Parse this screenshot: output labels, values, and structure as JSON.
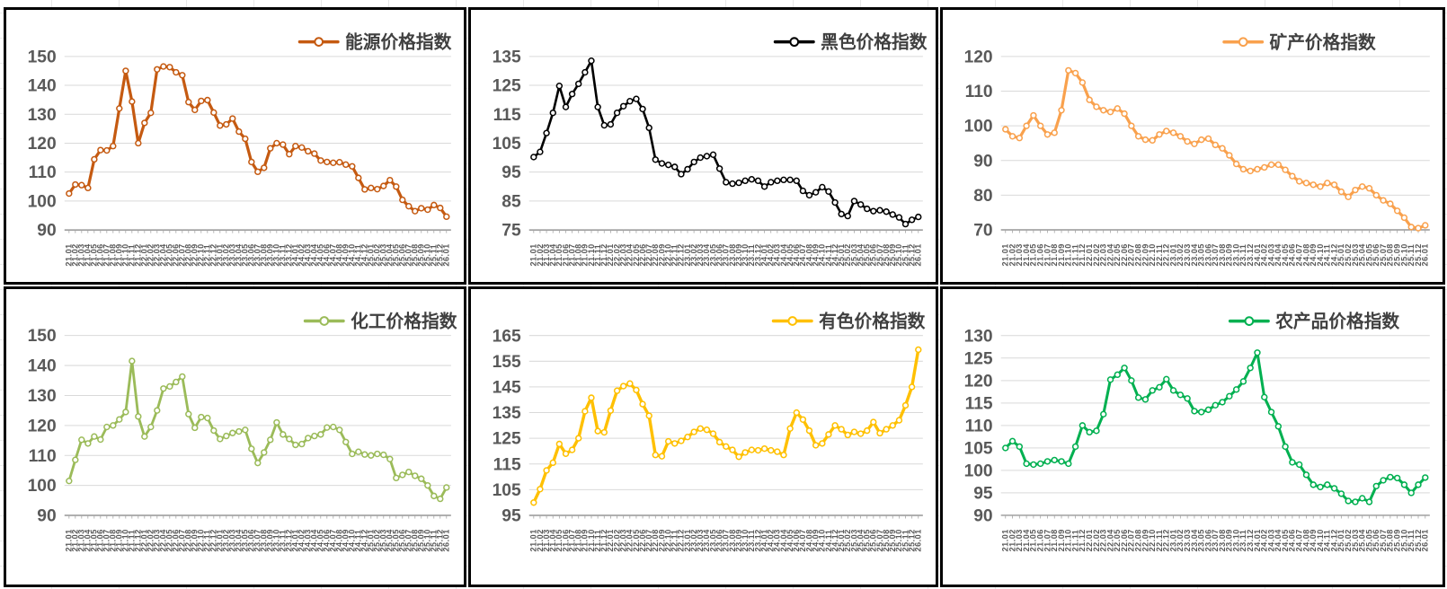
{
  "page": {
    "background": "#FFFFFF"
  },
  "style": {
    "grid_color": "#D9D9D9",
    "axis_color": "#808080",
    "tick_mark_color": "#A6A6A6",
    "y_tick_label_color": "#595959",
    "x_tick_label_color": "#595959",
    "legend_text_color": "#404040",
    "marker_fill": "#FFFFFF",
    "panel_border_color": "#000000"
  },
  "x_categories": [
    "21.01",
    "21.02",
    "21.03",
    "21.04",
    "21.05",
    "21.06",
    "21.07",
    "21.08",
    "21.09",
    "21.10",
    "21.11",
    "21.12",
    "22.01",
    "22.02",
    "22.03",
    "22.04",
    "22.05",
    "22.06",
    "22.07",
    "22.08",
    "22.09",
    "22.10",
    "22.11",
    "22.12",
    "23.01",
    "23.02",
    "23.03",
    "23.04",
    "23.05",
    "23.06",
    "23.07",
    "23.08",
    "23.09",
    "23.10",
    "23.11",
    "23.12",
    "24.01",
    "24.02",
    "24.03",
    "24.04",
    "24.05",
    "24.06",
    "24.07",
    "24.08",
    "24.09",
    "24.10",
    "24.11",
    "24.12",
    "25.01",
    "25.02",
    "25.03",
    "25.04",
    "25.05",
    "25.06",
    "25.07",
    "25.08",
    "25.09",
    "25.10",
    "25.11",
    "25.12",
    "26.01"
  ],
  "chart_data": [
    {
      "type": "line",
      "key": "energy",
      "title": "能源价格指数",
      "color": "#C55A11",
      "ylim": [
        90,
        150
      ],
      "ytick_step": 10,
      "grid": true,
      "legend_position": "top-right",
      "values": [
        102.6,
        105.7,
        105.5,
        104.5,
        114.4,
        117.6,
        117.5,
        119.0,
        132.0,
        145.0,
        134.4,
        120.0,
        127.0,
        130.5,
        145.5,
        146.5,
        146.3,
        144.5,
        143.5,
        134.2,
        131.5,
        134.6,
        134.9,
        130.6,
        126.1,
        126.5,
        128.5,
        124.0,
        121.5,
        113.5,
        110.1,
        111.5,
        118.2,
        120.0,
        119.5,
        116.2,
        119.0,
        118.5,
        117.2,
        116.4,
        114.0,
        113.5,
        113.2,
        113.4,
        112.6,
        112.0,
        108.0,
        104.0,
        104.5,
        104.1,
        105.2,
        107.2,
        105.0,
        100.4,
        98.2,
        96.5,
        97.5,
        97.0,
        98.6,
        97.6,
        94.6
      ]
    },
    {
      "type": "line",
      "key": "ferrous",
      "title": "黑色价格指数",
      "color": "#000000",
      "ylim": [
        75,
        135
      ],
      "ytick_step": 10,
      "grid": true,
      "legend_position": "top-right",
      "values": [
        100.2,
        102.0,
        108.5,
        115.5,
        124.8,
        117.5,
        122.0,
        125.5,
        129.5,
        133.5,
        117.5,
        111.2,
        111.5,
        115.5,
        117.8,
        119.5,
        120.3,
        116.8,
        110.3,
        99.3,
        98.0,
        97.5,
        96.8,
        94.3,
        96.0,
        98.5,
        100.0,
        100.5,
        101.0,
        96.2,
        91.5,
        91.0,
        91.3,
        92.0,
        92.5,
        92.0,
        90.0,
        91.5,
        92.0,
        92.3,
        92.3,
        92.0,
        88.5,
        87.0,
        88.0,
        89.8,
        88.3,
        84.5,
        80.5,
        79.8,
        85.0,
        83.8,
        82.3,
        81.5,
        81.8,
        81.3,
        80.3,
        79.3,
        77.0,
        78.5,
        79.5
      ]
    },
    {
      "type": "line",
      "key": "mineral",
      "title": "矿产价格指数",
      "color": "#F9A14D",
      "ylim": [
        70,
        120
      ],
      "ytick_step": 10,
      "grid": true,
      "legend_position": "top-right",
      "values": [
        99.0,
        97.0,
        96.5,
        100.0,
        103.0,
        100.0,
        97.5,
        98.0,
        104.5,
        116.0,
        115.2,
        112.5,
        107.5,
        105.5,
        104.5,
        104.0,
        105.0,
        103.5,
        100.0,
        97.0,
        96.0,
        95.8,
        97.5,
        98.5,
        98.0,
        97.0,
        95.5,
        94.8,
        96.0,
        96.3,
        94.5,
        93.5,
        91.5,
        89.0,
        87.5,
        87.0,
        87.5,
        88.0,
        88.8,
        88.8,
        87.3,
        85.5,
        84.0,
        83.5,
        83.0,
        82.5,
        83.5,
        83.0,
        81.0,
        79.5,
        81.5,
        82.5,
        82.0,
        80.0,
        78.5,
        77.5,
        75.5,
        73.5,
        70.8,
        70.5,
        71.3
      ]
    },
    {
      "type": "line",
      "key": "chemical",
      "title": "化工价格指数",
      "color": "#9BBB59",
      "ylim": [
        90,
        150
      ],
      "ytick_step": 10,
      "grid": true,
      "legend_position": "top-right",
      "values": [
        101.5,
        108.5,
        115.2,
        114.0,
        116.3,
        115.3,
        119.5,
        120.0,
        122.0,
        124.5,
        141.5,
        123.0,
        116.3,
        119.5,
        125.0,
        132.3,
        133.0,
        134.5,
        136.3,
        123.8,
        119.2,
        122.8,
        122.5,
        118.3,
        115.5,
        116.5,
        117.5,
        118.0,
        118.5,
        112.2,
        107.5,
        111.0,
        115.2,
        121.0,
        117.0,
        115.5,
        113.5,
        113.8,
        115.8,
        116.5,
        117.0,
        119.3,
        119.5,
        118.5,
        114.5,
        110.5,
        111.2,
        110.3,
        110.0,
        110.5,
        110.2,
        108.8,
        102.5,
        103.5,
        104.5,
        103.2,
        102.2,
        100.0,
        96.5,
        95.5,
        99.3
      ]
    },
    {
      "type": "line",
      "key": "nonferrous",
      "title": "有色价格指数",
      "color": "#FFC000",
      "ylim": [
        95,
        165
      ],
      "ytick_step": 10,
      "grid": true,
      "legend_position": "top-right",
      "values": [
        100.0,
        105.2,
        112.5,
        115.5,
        122.8,
        119.0,
        120.5,
        125.0,
        135.5,
        140.8,
        127.8,
        127.3,
        135.8,
        143.5,
        145.3,
        146.3,
        143.8,
        138.3,
        133.8,
        118.5,
        118.0,
        123.8,
        123.0,
        124.0,
        125.5,
        127.5,
        128.8,
        128.3,
        126.8,
        123.5,
        121.8,
        120.5,
        117.8,
        119.5,
        120.5,
        120.3,
        121.0,
        120.3,
        119.8,
        118.5,
        128.8,
        135.0,
        132.3,
        128.0,
        122.3,
        123.0,
        126.5,
        130.0,
        128.5,
        126.3,
        127.5,
        126.8,
        128.0,
        131.3,
        127.0,
        128.5,
        130.0,
        132.0,
        137.8,
        145.0,
        159.5
      ]
    },
    {
      "type": "line",
      "key": "agricultural",
      "title": "农产品价格指数",
      "color": "#00B050",
      "ylim": [
        90,
        130
      ],
      "ytick_step": 5,
      "grid": true,
      "legend_position": "top-right",
      "values": [
        105.0,
        106.5,
        105.3,
        101.5,
        101.3,
        101.5,
        102.0,
        102.3,
        102.0,
        101.5,
        105.3,
        110.0,
        108.5,
        108.8,
        112.5,
        120.2,
        121.3,
        122.8,
        120.0,
        116.2,
        115.8,
        117.8,
        118.5,
        120.3,
        117.8,
        116.8,
        116.0,
        113.2,
        113.0,
        113.5,
        114.5,
        115.2,
        116.5,
        118.0,
        119.8,
        122.8,
        126.2,
        116.3,
        113.0,
        109.8,
        105.3,
        101.8,
        101.3,
        99.0,
        96.8,
        96.3,
        96.8,
        96.0,
        94.8,
        93.2,
        93.0,
        93.8,
        93.0,
        96.5,
        97.8,
        98.5,
        98.3,
        96.8,
        95.0,
        96.8,
        98.4
      ]
    }
  ]
}
